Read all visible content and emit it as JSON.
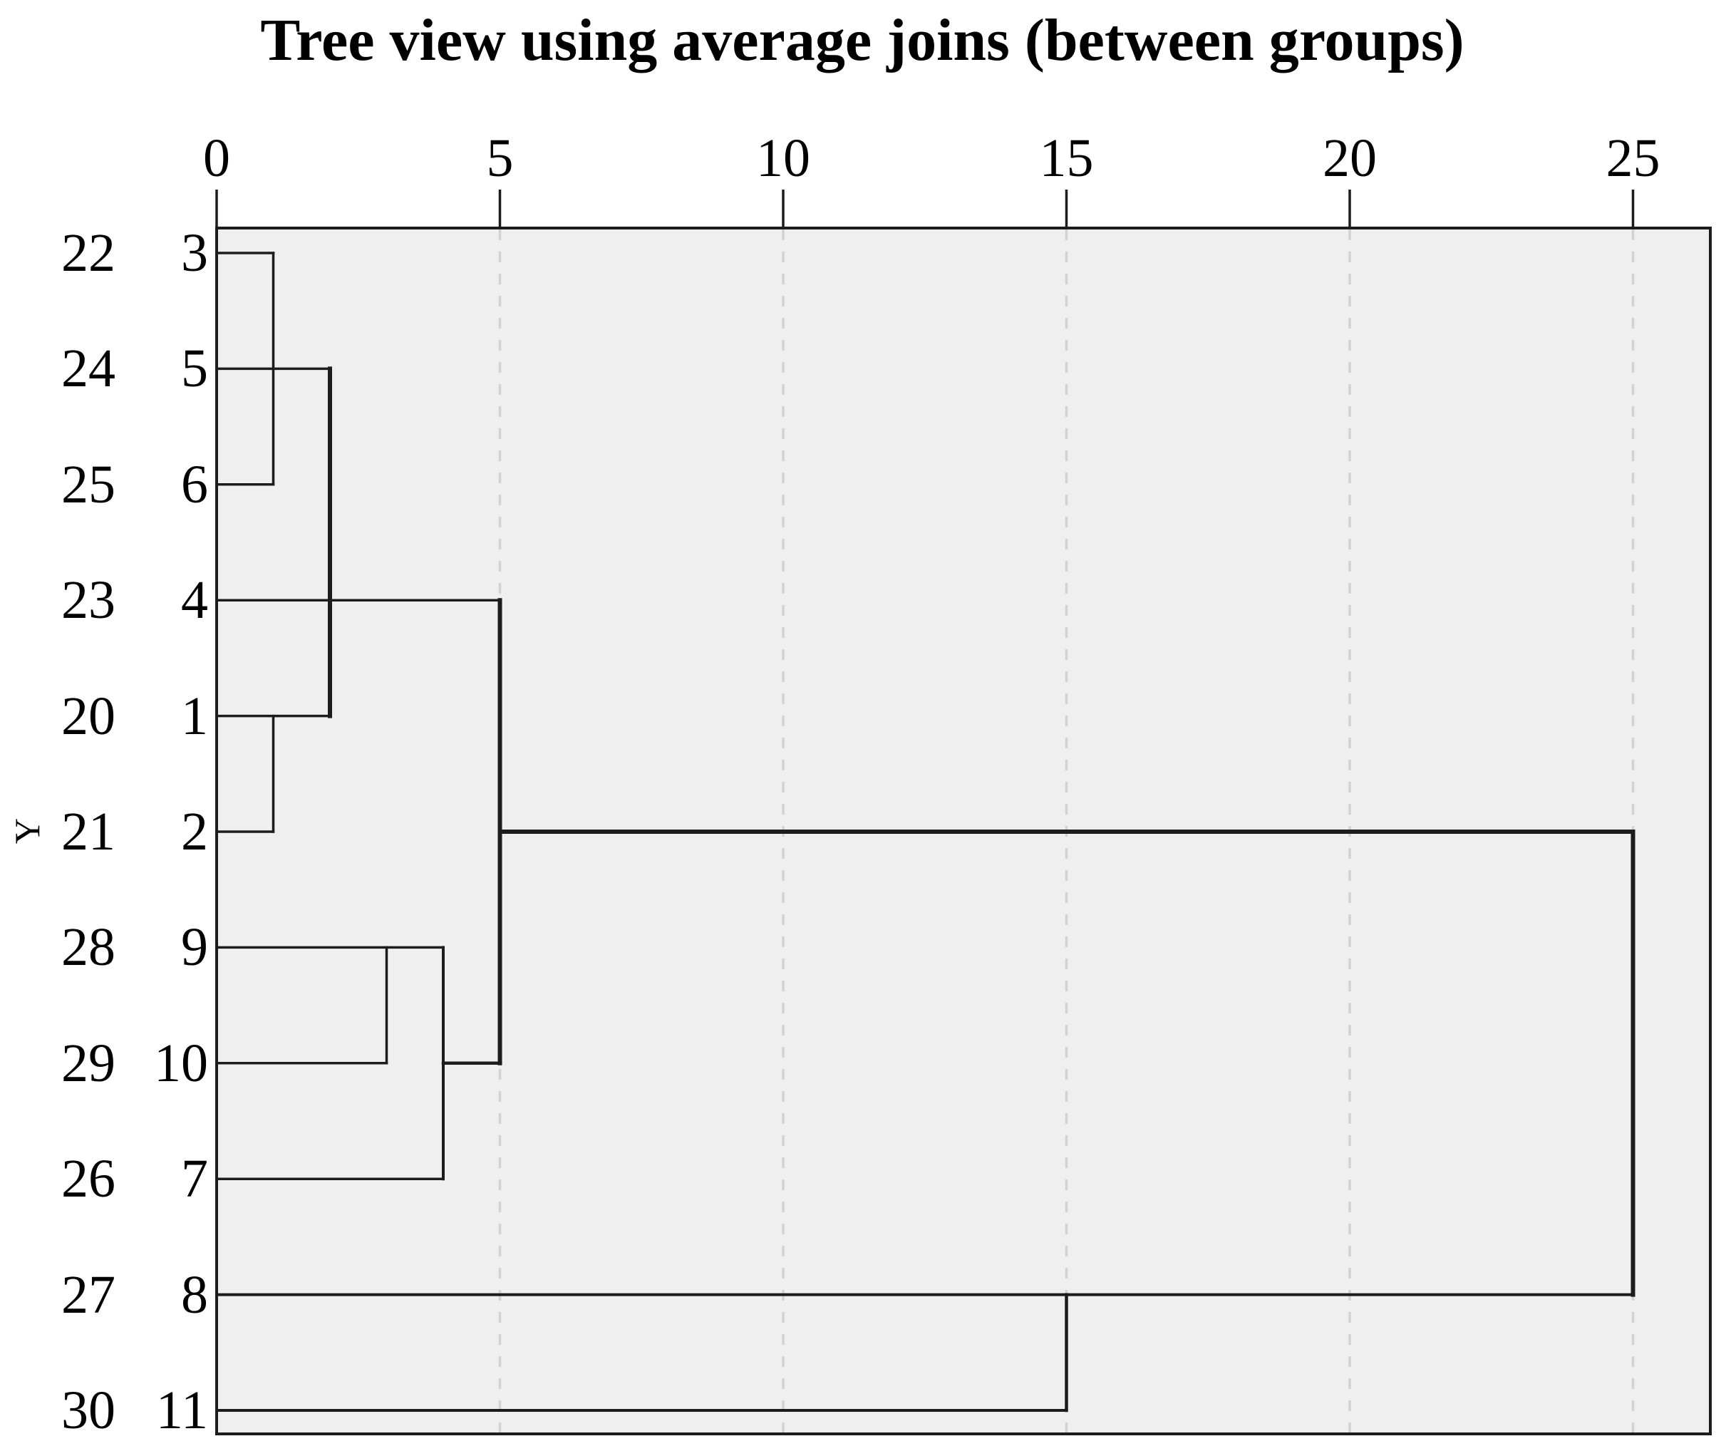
{
  "chart_data": {
    "type": "dendrogram",
    "title": "Tree view using average joins (between groups)",
    "orientation": "horizontal",
    "ylabel": "Y",
    "x_axis": {
      "position": "top",
      "ticks": [
        0,
        5,
        10,
        15,
        20,
        25
      ],
      "xlim": [
        0,
        26.4
      ],
      "gridlines": {
        "at": [
          5,
          10,
          15,
          20,
          25
        ],
        "style": "dashed"
      }
    },
    "leaves": [
      {
        "case": "22",
        "id": "3"
      },
      {
        "case": "24",
        "id": "5"
      },
      {
        "case": "25",
        "id": "6"
      },
      {
        "case": "23",
        "id": "4"
      },
      {
        "case": "20",
        "id": "1"
      },
      {
        "case": "21",
        "id": "2"
      },
      {
        "case": "28",
        "id": "9"
      },
      {
        "case": "29",
        "id": "10"
      },
      {
        "case": "26",
        "id": "7"
      },
      {
        "case": "27",
        "id": "8"
      },
      {
        "case": "30",
        "id": "11"
      }
    ],
    "joins": [
      {
        "distance": 1,
        "merges": [
          "3",
          "6"
        ]
      },
      {
        "distance": 1,
        "merges": [
          "1",
          "2"
        ]
      },
      {
        "distance": 2,
        "merges": [
          "{3,5,6}",
          "{1,2}"
        ]
      },
      {
        "distance": 3,
        "merges": [
          "9",
          "10"
        ]
      },
      {
        "distance": 4,
        "merges": [
          "{9,10}",
          "7"
        ]
      },
      {
        "distance": 5,
        "merges": [
          "{1,2,3,4,5,6}",
          "{7,9,10}"
        ]
      },
      {
        "distance": 15,
        "merges": [
          "8",
          "11"
        ]
      },
      {
        "distance": 25,
        "merges": [
          "{1,2,3,4,5,6,7,9,10}",
          "{8,11}"
        ]
      }
    ],
    "segments": {
      "horizontal": [
        {
          "row": 1,
          "from": 0,
          "to": 1,
          "w": 3.5
        },
        {
          "row": 2,
          "from": 0,
          "to": 2,
          "w": 3.5
        },
        {
          "row": 3,
          "from": 0,
          "to": 1,
          "w": 3.5
        },
        {
          "row": 4,
          "from": 0,
          "to": 5,
          "w": 3.5
        },
        {
          "row": 5,
          "from": 0,
          "to": 2,
          "w": 3.5
        },
        {
          "row": 6,
          "from": 0,
          "to": 1,
          "w": 3.5
        },
        {
          "row": 6,
          "from": 5,
          "to": 25,
          "w": 6
        },
        {
          "row": 7,
          "from": 0,
          "to": 4,
          "w": 3.5
        },
        {
          "row": 8,
          "from": 0,
          "to": 3,
          "w": 3.5
        },
        {
          "row": 8,
          "from": 4,
          "to": 5,
          "w": 4.5
        },
        {
          "row": 9,
          "from": 0,
          "to": 4,
          "w": 3.5
        },
        {
          "row": 10,
          "from": 0,
          "to": 25,
          "w": 4
        },
        {
          "row": 11,
          "from": 0,
          "to": 15,
          "w": 4
        }
      ],
      "vertical": [
        {
          "at": 1,
          "from": 1,
          "to": 3,
          "w": 3.5
        },
        {
          "at": 1,
          "from": 5,
          "to": 6,
          "w": 3.5
        },
        {
          "at": 2,
          "from": 2,
          "to": 5,
          "w": 6
        },
        {
          "at": 3,
          "from": 7,
          "to": 8,
          "w": 3.5
        },
        {
          "at": 4,
          "from": 7,
          "to": 9,
          "w": 4
        },
        {
          "at": 5,
          "from": 4,
          "to": 8,
          "w": 6
        },
        {
          "at": 15,
          "from": 10,
          "to": 11,
          "w": 4.5
        },
        {
          "at": 25,
          "from": 6,
          "to": 10,
          "w": 6
        }
      ]
    },
    "colors": {
      "background": "#ffffff",
      "plot_fill": "#efefef",
      "line": "#1c1c1c",
      "gridline": "#d2d2d2",
      "text": "#000000"
    }
  }
}
